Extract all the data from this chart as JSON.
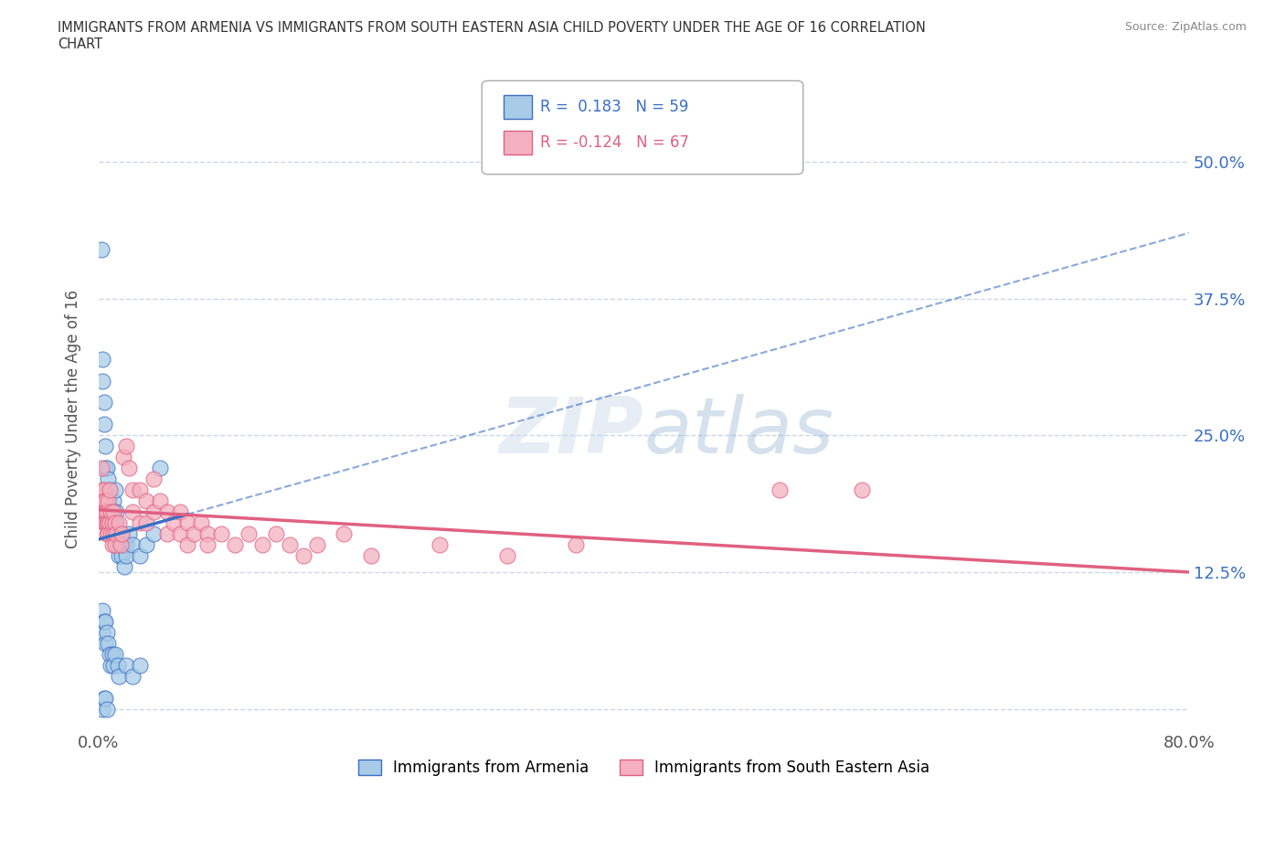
{
  "title": "IMMIGRANTS FROM ARMENIA VS IMMIGRANTS FROM SOUTH EASTERN ASIA CHILD POVERTY UNDER THE AGE OF 16 CORRELATION\nCHART",
  "source": "Source: ZipAtlas.com",
  "ylabel": "Child Poverty Under the Age of 16",
  "xlim": [
    0.0,
    0.8
  ],
  "ylim": [
    -0.02,
    0.55
  ],
  "xticks": [
    0.0,
    0.1,
    0.2,
    0.3,
    0.4,
    0.5,
    0.6,
    0.7,
    0.8
  ],
  "xticklabels": [
    "0.0%",
    "",
    "",
    "",
    "",
    "",
    "",
    "",
    "80.0%"
  ],
  "ytick_positions": [
    0.0,
    0.125,
    0.25,
    0.375,
    0.5
  ],
  "ytick_labels": [
    "",
    "12.5%",
    "25.0%",
    "37.5%",
    "50.0%"
  ],
  "armenia_color": "#a8cce8",
  "sea_color": "#f4b0c0",
  "armenia_line_color": "#3a6fc4",
  "sea_line_color": "#e06080",
  "armenia_trendline": [
    0.0,
    0.155,
    0.8,
    0.435
  ],
  "sea_trendline": [
    0.0,
    0.182,
    0.8,
    0.125
  ],
  "background_color": "#ffffff",
  "grid_color": "#c8d8e8",
  "grid_style": "--",
  "armenia_scatter": [
    [
      0.002,
      0.42
    ],
    [
      0.003,
      0.32
    ],
    [
      0.003,
      0.3
    ],
    [
      0.004,
      0.28
    ],
    [
      0.004,
      0.26
    ],
    [
      0.005,
      0.24
    ],
    [
      0.005,
      0.22
    ],
    [
      0.006,
      0.2
    ],
    [
      0.006,
      0.22
    ],
    [
      0.007,
      0.19
    ],
    [
      0.007,
      0.21
    ],
    [
      0.008,
      0.18
    ],
    [
      0.008,
      0.2
    ],
    [
      0.009,
      0.18
    ],
    [
      0.009,
      0.17
    ],
    [
      0.01,
      0.16
    ],
    [
      0.01,
      0.17
    ],
    [
      0.011,
      0.19
    ],
    [
      0.011,
      0.18
    ],
    [
      0.012,
      0.2
    ],
    [
      0.012,
      0.16
    ],
    [
      0.013,
      0.18
    ],
    [
      0.013,
      0.17
    ],
    [
      0.014,
      0.16
    ],
    [
      0.014,
      0.15
    ],
    [
      0.015,
      0.16
    ],
    [
      0.015,
      0.14
    ],
    [
      0.016,
      0.15
    ],
    [
      0.016,
      0.15
    ],
    [
      0.017,
      0.16
    ],
    [
      0.017,
      0.14
    ],
    [
      0.018,
      0.15
    ],
    [
      0.019,
      0.13
    ],
    [
      0.02,
      0.15
    ],
    [
      0.02,
      0.14
    ],
    [
      0.022,
      0.16
    ],
    [
      0.025,
      0.15
    ],
    [
      0.03,
      0.14
    ],
    [
      0.035,
      0.15
    ],
    [
      0.04,
      0.16
    ],
    [
      0.045,
      0.22
    ],
    [
      0.003,
      0.09
    ],
    [
      0.003,
      0.07
    ],
    [
      0.004,
      0.08
    ],
    [
      0.005,
      0.08
    ],
    [
      0.005,
      0.06
    ],
    [
      0.006,
      0.07
    ],
    [
      0.007,
      0.06
    ],
    [
      0.008,
      0.05
    ],
    [
      0.009,
      0.04
    ],
    [
      0.01,
      0.05
    ],
    [
      0.011,
      0.04
    ],
    [
      0.012,
      0.05
    ],
    [
      0.014,
      0.04
    ],
    [
      0.015,
      0.03
    ],
    [
      0.02,
      0.04
    ],
    [
      0.025,
      0.03
    ],
    [
      0.03,
      0.04
    ],
    [
      0.003,
      0.0
    ],
    [
      0.004,
      0.01
    ],
    [
      0.005,
      0.01
    ],
    [
      0.006,
      0.0
    ]
  ],
  "sea_scatter": [
    [
      0.002,
      0.22
    ],
    [
      0.003,
      0.2
    ],
    [
      0.003,
      0.18
    ],
    [
      0.004,
      0.2
    ],
    [
      0.004,
      0.19
    ],
    [
      0.004,
      0.17
    ],
    [
      0.005,
      0.19
    ],
    [
      0.005,
      0.18
    ],
    [
      0.005,
      0.17
    ],
    [
      0.006,
      0.18
    ],
    [
      0.006,
      0.17
    ],
    [
      0.006,
      0.16
    ],
    [
      0.007,
      0.19
    ],
    [
      0.007,
      0.17
    ],
    [
      0.007,
      0.16
    ],
    [
      0.008,
      0.2
    ],
    [
      0.008,
      0.17
    ],
    [
      0.009,
      0.18
    ],
    [
      0.009,
      0.16
    ],
    [
      0.01,
      0.17
    ],
    [
      0.01,
      0.15
    ],
    [
      0.011,
      0.18
    ],
    [
      0.011,
      0.16
    ],
    [
      0.012,
      0.17
    ],
    [
      0.012,
      0.15
    ],
    [
      0.013,
      0.16
    ],
    [
      0.015,
      0.17
    ],
    [
      0.016,
      0.15
    ],
    [
      0.017,
      0.16
    ],
    [
      0.018,
      0.23
    ],
    [
      0.02,
      0.24
    ],
    [
      0.022,
      0.22
    ],
    [
      0.025,
      0.2
    ],
    [
      0.025,
      0.18
    ],
    [
      0.03,
      0.2
    ],
    [
      0.03,
      0.17
    ],
    [
      0.035,
      0.19
    ],
    [
      0.035,
      0.17
    ],
    [
      0.04,
      0.21
    ],
    [
      0.04,
      0.18
    ],
    [
      0.045,
      0.19
    ],
    [
      0.05,
      0.18
    ],
    [
      0.05,
      0.16
    ],
    [
      0.055,
      0.17
    ],
    [
      0.06,
      0.18
    ],
    [
      0.06,
      0.16
    ],
    [
      0.065,
      0.17
    ],
    [
      0.065,
      0.15
    ],
    [
      0.07,
      0.16
    ],
    [
      0.075,
      0.17
    ],
    [
      0.08,
      0.16
    ],
    [
      0.08,
      0.15
    ],
    [
      0.09,
      0.16
    ],
    [
      0.1,
      0.15
    ],
    [
      0.11,
      0.16
    ],
    [
      0.12,
      0.15
    ],
    [
      0.13,
      0.16
    ],
    [
      0.14,
      0.15
    ],
    [
      0.15,
      0.14
    ],
    [
      0.16,
      0.15
    ],
    [
      0.18,
      0.16
    ],
    [
      0.2,
      0.14
    ],
    [
      0.25,
      0.15
    ],
    [
      0.3,
      0.14
    ],
    [
      0.35,
      0.15
    ],
    [
      0.5,
      0.2
    ],
    [
      0.56,
      0.2
    ]
  ]
}
